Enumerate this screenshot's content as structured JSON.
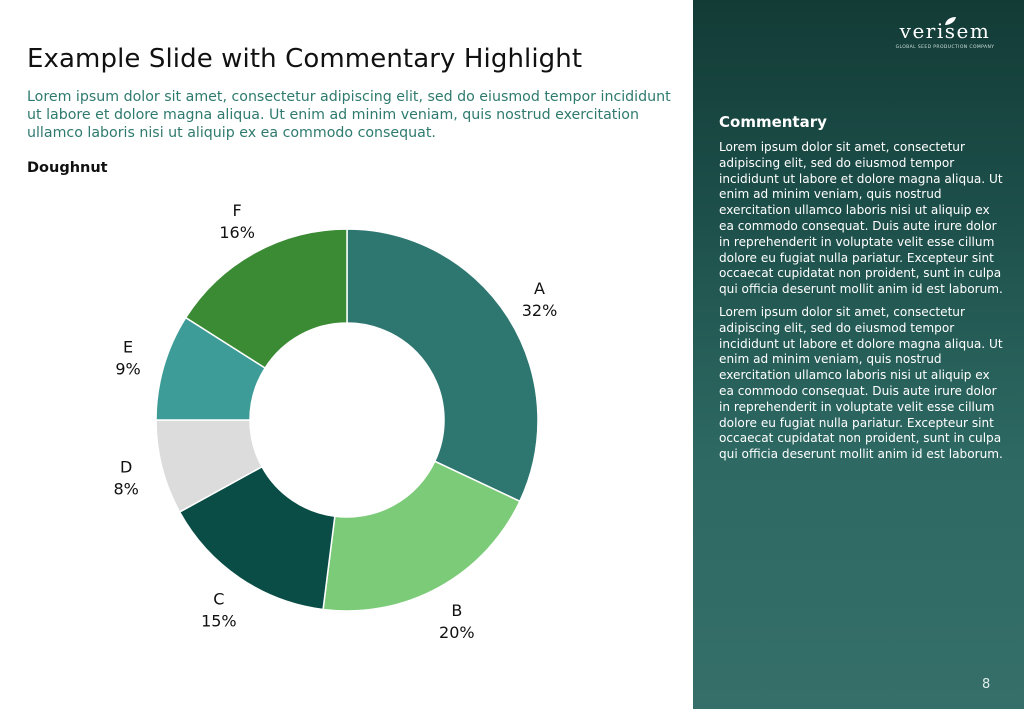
{
  "slide": {
    "title": "Example Slide with Commentary Highlight",
    "subtitle": "Lorem ipsum dolor sit amet, consectetur adipiscing elit, sed do eiusmod tempor incididunt ut labore et dolore magna aliqua. Ut enim ad minim veniam, quis nostrud exercitation ullamco laboris nisi ut aliquip ex ea commodo consequat.",
    "chart_heading": "Doughnut",
    "page_number": "8"
  },
  "brand": {
    "logo_text": "verisem",
    "logo_tagline": "GLOBAL SEED PRODUCTION COMPANY"
  },
  "commentary": {
    "title": "Commentary",
    "paragraphs": [
      "Lorem ipsum dolor sit amet, consectetur adipiscing elit, sed do eiusmod tempor incididunt ut labore et dolore magna aliqua. Ut enim ad minim veniam, quis nostrud exercitation ullamco laboris nisi ut aliquip ex ea commodo consequat. Duis aute irure dolor in reprehenderit in voluptate velit esse cillum dolore eu fugiat nulla pariatur. Excepteur sint occaecat cupidatat non proident, sunt in culpa qui officia deserunt mollit anim id est laborum.",
      "Lorem ipsum dolor sit amet, consectetur adipiscing elit, sed do eiusmod tempor incididunt ut labore et dolore magna aliqua. Ut enim ad minim veniam, quis nostrud exercitation ullamco laboris nisi ut aliquip ex ea commodo consequat. Duis aute irure dolor in reprehenderit in voluptate velit esse cillum dolore eu fugiat nulla pariatur. Excepteur sint occaecat cupidatat non proident, sunt in culpa qui officia deserunt mollit anim id est laborum."
    ]
  },
  "chart_data": {
    "type": "pie",
    "variant": "doughnut",
    "title": "Doughnut",
    "categories": [
      "A",
      "B",
      "C",
      "D",
      "E",
      "F"
    ],
    "values": [
      32,
      20,
      15,
      8,
      9,
      16
    ],
    "value_labels": [
      "32%",
      "20%",
      "15%",
      "8%",
      "9%",
      "16%"
    ],
    "colors": [
      "#2e7670",
      "#7ccb78",
      "#0a4d47",
      "#dcdcdc",
      "#3d9c97",
      "#3b8a34"
    ],
    "start": "top, clockwise",
    "legend": "none; category labels beside slices"
  }
}
